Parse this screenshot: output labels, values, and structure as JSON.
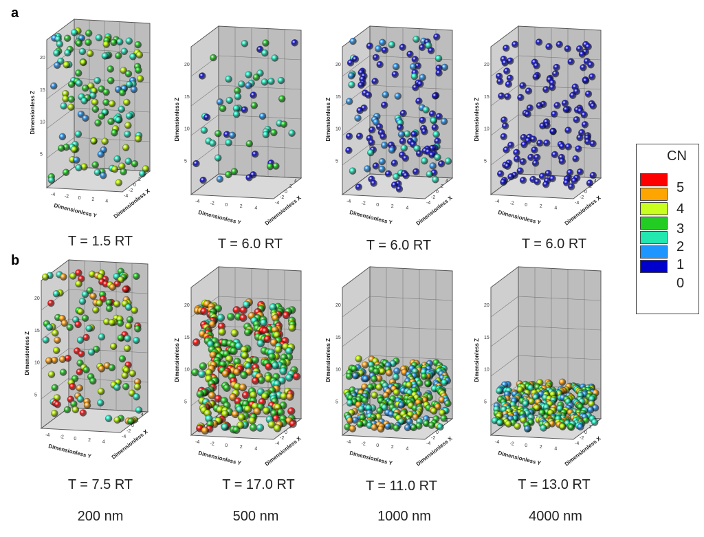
{
  "panels": {
    "a": {
      "letter": "a",
      "captions": [
        "T = 1.5 RT",
        "T = 6.0 RT",
        "T = 6.0 RT",
        "T = 6.0 RT"
      ]
    },
    "b": {
      "letter": "b",
      "captions": [
        "T = 7.5 RT",
        "T = 17.0 RT",
        "T = 11.0 RT",
        "T = 13.0 RT"
      ],
      "sizes": [
        "200 nm",
        "500 nm",
        "1000 nm",
        "4000 nm"
      ]
    }
  },
  "axes": {
    "x_label": "Dimensionless X",
    "y_label": "Dimensionless Y",
    "z_label": "Dimensionless Z",
    "z_ticks": [
      "5",
      "10",
      "15",
      "20"
    ],
    "y_ticks": [
      "-4",
      "-2",
      "0",
      "2",
      "4"
    ],
    "x_ticks": [
      "-4",
      "-2",
      "0",
      "2",
      "4"
    ]
  },
  "legend": {
    "title": "CN",
    "items": [
      {
        "label": "5",
        "color": "#ff0000"
      },
      {
        "label": "4",
        "color": "#ffa500"
      },
      {
        "label": "3",
        "color": "#c8ff1e"
      },
      {
        "label": "2",
        "color": "#22cc22"
      },
      {
        "label": "1",
        "color": "#22e8b0"
      },
      {
        "label": "0",
        "color": "#1e96ff"
      },
      {
        "label": "",
        "color": "#0000cc"
      }
    ]
  },
  "colors": {
    "cn5": "#ff1a1a",
    "cn4": "#ffa31a",
    "cn3": "#b8f000",
    "cn2": "#2ccc2c",
    "cn1": "#2ae8c0",
    "cn0": "#3399ee",
    "cn_iso": "#1a1acc",
    "box_face": "#bdbdbd",
    "box_floor": "#d9d9d9"
  }
}
